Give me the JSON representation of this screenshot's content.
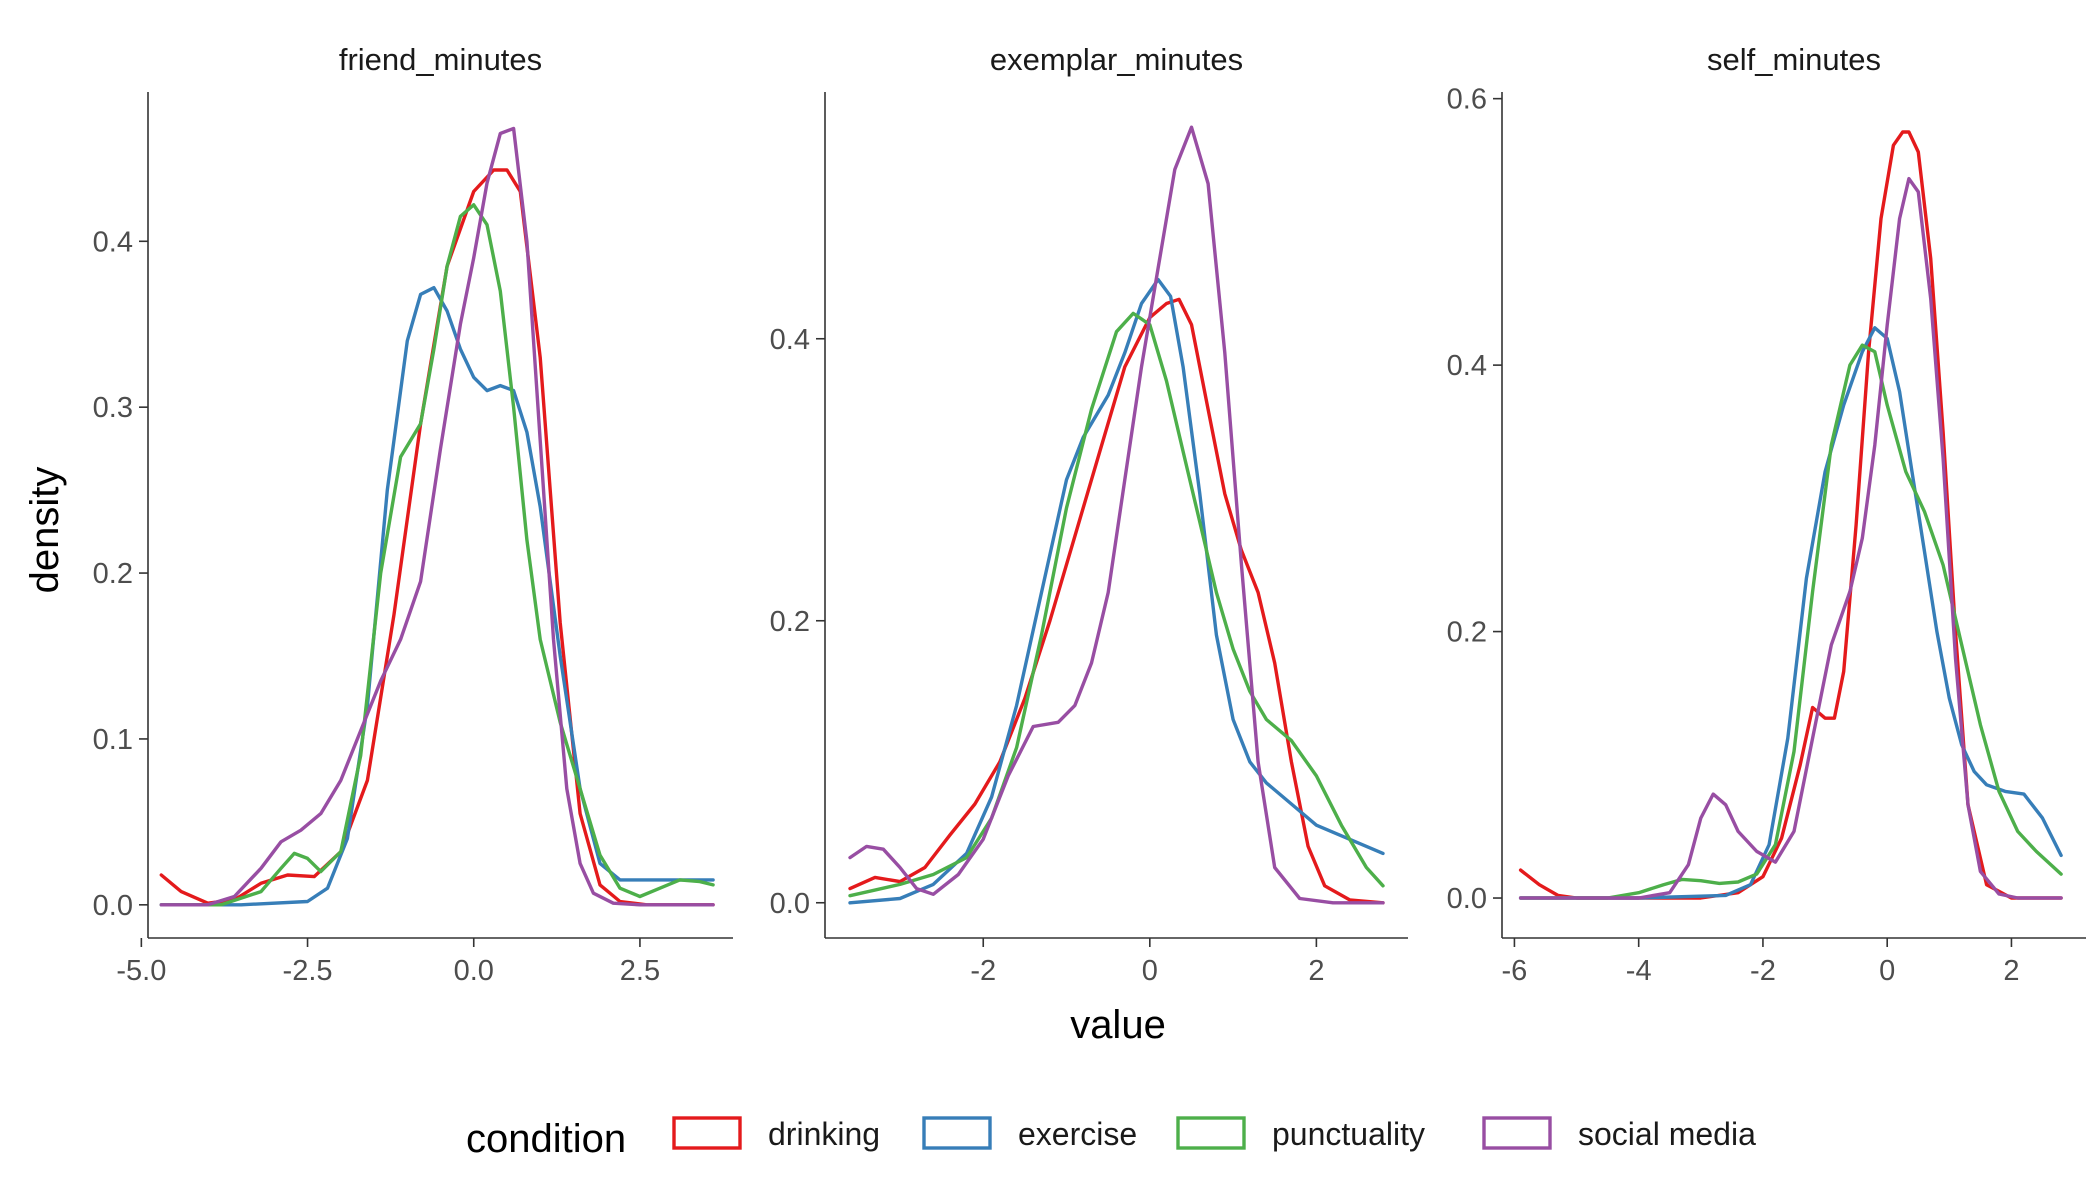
{
  "chart_data": [
    {
      "type": "line",
      "title": "friend_minutes",
      "xlim": [
        -4.9,
        3.9
      ],
      "ylim": [
        -0.02,
        0.49
      ],
      "xticks": [
        -5.0,
        -2.5,
        0.0,
        2.5
      ],
      "xtick_labels": [
        "-5.0",
        "-2.5",
        "0.0",
        "2.5"
      ],
      "yticks": [
        0.0,
        0.1,
        0.2,
        0.3,
        0.4
      ],
      "ytick_labels": [
        "0.0",
        "0.1",
        "0.2",
        "0.3",
        "0.4"
      ],
      "series": [
        {
          "name": "drinking",
          "x": [
            -4.7,
            -4.4,
            -4.0,
            -3.6,
            -3.2,
            -2.8,
            -2.4,
            -2.0,
            -1.6,
            -1.2,
            -0.8,
            -0.4,
            0.0,
            0.3,
            0.5,
            0.7,
            1.0,
            1.3,
            1.6,
            1.9,
            2.2,
            2.6,
            3.0,
            3.6
          ],
          "y": [
            0.018,
            0.008,
            0.001,
            0.003,
            0.013,
            0.018,
            0.017,
            0.032,
            0.075,
            0.175,
            0.29,
            0.385,
            0.43,
            0.443,
            0.443,
            0.43,
            0.33,
            0.17,
            0.055,
            0.012,
            0.002,
            0.0,
            0.0,
            0.0
          ]
        },
        {
          "name": "exercise",
          "x": [
            -4.7,
            -3.5,
            -2.5,
            -2.2,
            -1.9,
            -1.6,
            -1.3,
            -1.0,
            -0.8,
            -0.6,
            -0.4,
            -0.2,
            0.0,
            0.2,
            0.4,
            0.6,
            0.8,
            1.0,
            1.3,
            1.6,
            1.9,
            2.2,
            2.6,
            3.0,
            3.6
          ],
          "y": [
            0.0,
            0.0,
            0.002,
            0.01,
            0.04,
            0.12,
            0.25,
            0.34,
            0.368,
            0.372,
            0.358,
            0.335,
            0.318,
            0.31,
            0.313,
            0.31,
            0.285,
            0.24,
            0.15,
            0.07,
            0.025,
            0.015,
            0.015,
            0.015,
            0.015
          ]
        },
        {
          "name": "punctuality",
          "x": [
            -4.7,
            -3.8,
            -3.2,
            -2.9,
            -2.7,
            -2.5,
            -2.3,
            -2.0,
            -1.7,
            -1.4,
            -1.1,
            -0.8,
            -0.6,
            -0.4,
            -0.2,
            0.0,
            0.2,
            0.4,
            0.6,
            0.8,
            1.0,
            1.3,
            1.6,
            1.9,
            2.2,
            2.5,
            2.8,
            3.1,
            3.4,
            3.6
          ],
          "y": [
            0.0,
            0.0,
            0.008,
            0.022,
            0.031,
            0.028,
            0.02,
            0.032,
            0.09,
            0.2,
            0.27,
            0.29,
            0.335,
            0.385,
            0.415,
            0.422,
            0.41,
            0.37,
            0.3,
            0.22,
            0.16,
            0.11,
            0.07,
            0.03,
            0.01,
            0.005,
            0.01,
            0.015,
            0.014,
            0.012
          ]
        },
        {
          "name": "social media",
          "x": [
            -4.7,
            -4.0,
            -3.6,
            -3.2,
            -2.9,
            -2.6,
            -2.3,
            -2.0,
            -1.7,
            -1.4,
            -1.1,
            -0.8,
            -0.5,
            -0.2,
            0.0,
            0.2,
            0.4,
            0.6,
            0.8,
            1.0,
            1.2,
            1.4,
            1.6,
            1.8,
            2.1,
            2.5,
            3.0,
            3.6
          ],
          "y": [
            0.0,
            0.0,
            0.005,
            0.022,
            0.038,
            0.045,
            0.055,
            0.075,
            0.105,
            0.135,
            0.16,
            0.195,
            0.275,
            0.35,
            0.39,
            0.435,
            0.465,
            0.468,
            0.4,
            0.28,
            0.16,
            0.07,
            0.025,
            0.007,
            0.001,
            0.0,
            0.0,
            0.0
          ]
        }
      ]
    },
    {
      "type": "line",
      "title": "exemplar_minutes",
      "xlim": [
        -3.9,
        3.1
      ],
      "ylim": [
        -0.025,
        0.575
      ],
      "xticks": [
        -2,
        0,
        2
      ],
      "xtick_labels": [
        "-2",
        "0",
        "2"
      ],
      "yticks": [
        0.0,
        0.2,
        0.4
      ],
      "ytick_labels": [
        "0.0",
        "0.2",
        "0.4"
      ],
      "series": [
        {
          "name": "drinking",
          "x": [
            -3.6,
            -3.3,
            -3.0,
            -2.7,
            -2.4,
            -2.1,
            -1.8,
            -1.5,
            -1.2,
            -0.9,
            -0.6,
            -0.3,
            0.0,
            0.2,
            0.35,
            0.5,
            0.7,
            0.9,
            1.1,
            1.3,
            1.5,
            1.7,
            1.9,
            2.1,
            2.4,
            2.8
          ],
          "y": [
            0.01,
            0.018,
            0.015,
            0.025,
            0.048,
            0.07,
            0.1,
            0.145,
            0.2,
            0.26,
            0.32,
            0.38,
            0.415,
            0.425,
            0.428,
            0.41,
            0.35,
            0.29,
            0.25,
            0.22,
            0.17,
            0.1,
            0.04,
            0.012,
            0.002,
            0.0
          ]
        },
        {
          "name": "exercise",
          "x": [
            -3.6,
            -3.0,
            -2.6,
            -2.2,
            -1.9,
            -1.6,
            -1.3,
            -1.0,
            -0.8,
            -0.5,
            -0.3,
            -0.1,
            0.1,
            0.25,
            0.4,
            0.6,
            0.8,
            1.0,
            1.2,
            1.4,
            1.7,
            2.0,
            2.4,
            2.8
          ],
          "y": [
            0.0,
            0.003,
            0.013,
            0.035,
            0.075,
            0.14,
            0.22,
            0.3,
            0.33,
            0.36,
            0.39,
            0.425,
            0.442,
            0.43,
            0.38,
            0.29,
            0.19,
            0.13,
            0.1,
            0.085,
            0.07,
            0.055,
            0.045,
            0.035
          ]
        },
        {
          "name": "punctuality",
          "x": [
            -3.6,
            -3.0,
            -2.6,
            -2.2,
            -1.9,
            -1.6,
            -1.3,
            -1.0,
            -0.7,
            -0.4,
            -0.2,
            0.0,
            0.2,
            0.4,
            0.6,
            0.8,
            1.0,
            1.2,
            1.4,
            1.7,
            2.0,
            2.3,
            2.6,
            2.8
          ],
          "y": [
            0.005,
            0.013,
            0.02,
            0.032,
            0.06,
            0.11,
            0.19,
            0.28,
            0.35,
            0.405,
            0.418,
            0.41,
            0.37,
            0.32,
            0.27,
            0.22,
            0.18,
            0.15,
            0.13,
            0.115,
            0.09,
            0.055,
            0.025,
            0.012
          ]
        },
        {
          "name": "social media",
          "x": [
            -3.6,
            -3.4,
            -3.2,
            -3.0,
            -2.8,
            -2.6,
            -2.3,
            -2.0,
            -1.7,
            -1.4,
            -1.1,
            -0.9,
            -0.7,
            -0.5,
            -0.3,
            -0.1,
            0.1,
            0.3,
            0.5,
            0.7,
            0.9,
            1.1,
            1.3,
            1.5,
            1.8,
            2.2,
            2.8
          ],
          "y": [
            0.032,
            0.04,
            0.038,
            0.025,
            0.01,
            0.006,
            0.02,
            0.045,
            0.09,
            0.125,
            0.128,
            0.14,
            0.17,
            0.22,
            0.3,
            0.38,
            0.45,
            0.52,
            0.55,
            0.51,
            0.39,
            0.24,
            0.1,
            0.025,
            0.003,
            0.0,
            0.0
          ]
        }
      ]
    },
    {
      "type": "line",
      "title": "self_minutes",
      "xlim": [
        -6.2,
        3.2
      ],
      "ylim": [
        -0.03,
        0.605
      ],
      "xticks": [
        -6,
        -4,
        -2,
        0,
        2
      ],
      "xtick_labels": [
        "-6",
        "-4",
        "-2",
        "0",
        "2"
      ],
      "yticks": [
        0.0,
        0.2,
        0.4,
        0.6
      ],
      "ytick_labels": [
        "0.0",
        "0.2",
        "0.4",
        "0.6"
      ],
      "series": [
        {
          "name": "drinking",
          "x": [
            -5.9,
            -5.6,
            -5.3,
            -5.0,
            -4.0,
            -3.0,
            -2.4,
            -2.0,
            -1.7,
            -1.4,
            -1.2,
            -1.0,
            -0.85,
            -0.7,
            -0.5,
            -0.3,
            -0.1,
            0.1,
            0.25,
            0.35,
            0.5,
            0.7,
            0.9,
            1.1,
            1.3,
            1.6,
            2.0,
            2.8
          ],
          "y": [
            0.021,
            0.01,
            0.002,
            0.0,
            0.0,
            0.0,
            0.004,
            0.016,
            0.045,
            0.1,
            0.143,
            0.135,
            0.135,
            0.17,
            0.28,
            0.41,
            0.51,
            0.565,
            0.575,
            0.575,
            0.56,
            0.48,
            0.35,
            0.2,
            0.07,
            0.01,
            0.0,
            0.0
          ]
        },
        {
          "name": "exercise",
          "x": [
            -5.9,
            -4.0,
            -2.6,
            -2.2,
            -1.9,
            -1.6,
            -1.3,
            -1.0,
            -0.7,
            -0.4,
            -0.2,
            0.0,
            0.2,
            0.4,
            0.6,
            0.8,
            1.0,
            1.2,
            1.4,
            1.6,
            1.9,
            2.2,
            2.5,
            2.8
          ],
          "y": [
            0.0,
            0.0,
            0.002,
            0.01,
            0.04,
            0.12,
            0.24,
            0.32,
            0.37,
            0.41,
            0.428,
            0.42,
            0.38,
            0.32,
            0.26,
            0.2,
            0.15,
            0.115,
            0.095,
            0.085,
            0.08,
            0.078,
            0.06,
            0.032
          ]
        },
        {
          "name": "punctuality",
          "x": [
            -5.9,
            -4.5,
            -4.0,
            -3.6,
            -3.3,
            -3.0,
            -2.7,
            -2.4,
            -2.1,
            -1.8,
            -1.5,
            -1.2,
            -0.9,
            -0.6,
            -0.4,
            -0.2,
            0.0,
            0.3,
            0.6,
            0.9,
            1.2,
            1.5,
            1.8,
            2.1,
            2.4,
            2.8
          ],
          "y": [
            0.0,
            0.0,
            0.004,
            0.01,
            0.014,
            0.013,
            0.011,
            0.012,
            0.018,
            0.04,
            0.11,
            0.23,
            0.34,
            0.4,
            0.415,
            0.41,
            0.37,
            0.32,
            0.29,
            0.25,
            0.19,
            0.13,
            0.08,
            0.05,
            0.035,
            0.018
          ]
        },
        {
          "name": "social media",
          "x": [
            -5.9,
            -4.0,
            -3.5,
            -3.2,
            -3.0,
            -2.8,
            -2.6,
            -2.4,
            -2.1,
            -1.8,
            -1.5,
            -1.2,
            -0.9,
            -0.6,
            -0.4,
            -0.2,
            0.0,
            0.2,
            0.35,
            0.5,
            0.7,
            0.9,
            1.1,
            1.3,
            1.5,
            1.8,
            2.1,
            2.8
          ],
          "y": [
            0.0,
            0.0,
            0.004,
            0.025,
            0.06,
            0.078,
            0.07,
            0.05,
            0.035,
            0.027,
            0.05,
            0.12,
            0.19,
            0.23,
            0.27,
            0.34,
            0.43,
            0.51,
            0.54,
            0.53,
            0.45,
            0.33,
            0.18,
            0.07,
            0.02,
            0.003,
            0.0,
            0.0
          ]
        }
      ]
    }
  ],
  "labels": {
    "x_axis": "value",
    "y_axis": "density"
  },
  "legend": {
    "title": "condition",
    "position": "bottom",
    "items": [
      {
        "label": "drinking",
        "color": "#e41a1c"
      },
      {
        "label": "exercise",
        "color": "#377eb8"
      },
      {
        "label": "punctuality",
        "color": "#4daf4a"
      },
      {
        "label": "social media",
        "color": "#984ea3"
      }
    ]
  },
  "colors": {
    "drinking": "#e41a1c",
    "exercise": "#377eb8",
    "punctuality": "#4daf4a",
    "social media": "#984ea3"
  }
}
